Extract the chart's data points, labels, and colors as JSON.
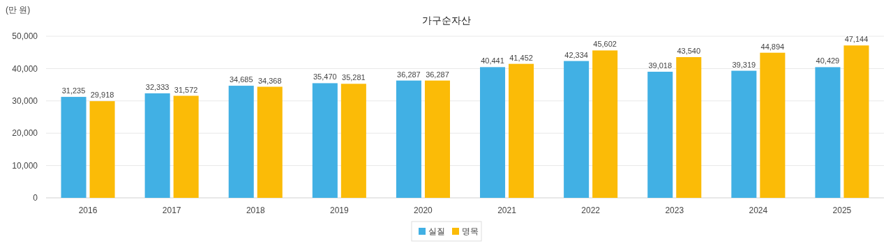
{
  "chart_data": {
    "type": "bar",
    "title": "가구순자산",
    "ylabel": "(만 원)",
    "categories": [
      "2016",
      "2017",
      "2018",
      "2019",
      "2020",
      "2021",
      "2022",
      "2023",
      "2024",
      "2025"
    ],
    "series": [
      {
        "name": "실질",
        "color": "#41b0e4",
        "values": [
          31235,
          32333,
          34685,
          35470,
          36287,
          40441,
          42334,
          39018,
          39319,
          40429
        ],
        "value_labels": [
          "31,235",
          "32,333",
          "34,685",
          "35,470",
          "36,287",
          "40,441",
          "42,334",
          "39,018",
          "39,319",
          "40,429"
        ]
      },
      {
        "name": "명목",
        "color": "#fbbb07",
        "values": [
          29918,
          31572,
          34368,
          35281,
          36287,
          41452,
          45602,
          43540,
          44894,
          47144
        ],
        "value_labels": [
          "29,918",
          "31,572",
          "34,368",
          "35,281",
          "36,287",
          "41,452",
          "45,602",
          "43,540",
          "44,894",
          "47,144"
        ]
      }
    ],
    "ylim": [
      0,
      50000
    ],
    "yticks": [
      0,
      {
        "value": 10000,
        "label": "10,000"
      },
      {
        "value": 20000,
        "label": "20,000"
      },
      {
        "value": 30000,
        "label": "30,000"
      },
      {
        "value": 40000,
        "label": "40,000"
      },
      {
        "value": 50000,
        "label": "50,000"
      }
    ],
    "grid": "y",
    "legend": "bottom"
  }
}
